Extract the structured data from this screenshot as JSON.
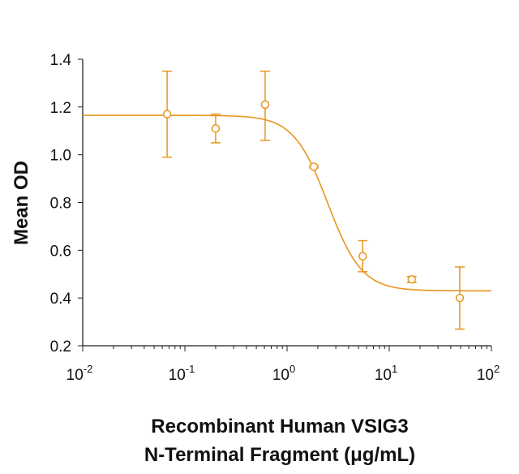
{
  "chart_data": {
    "type": "scatter",
    "xlabel": [
      "Recombinant Human VSIG3",
      "N-Terminal Fragment (μg/mL)"
    ],
    "ylabel": "Mean OD",
    "x_scale": "log",
    "xlim": [
      0.01,
      100
    ],
    "ylim": [
      0.2,
      1.4
    ],
    "x_tick_labels": [
      {
        "base": "10",
        "exp": "-2"
      },
      {
        "base": "10",
        "exp": "-1"
      },
      {
        "base": "10",
        "exp": "0"
      },
      {
        "base": "10",
        "exp": "1"
      },
      {
        "base": "10",
        "exp": "2"
      }
    ],
    "y_tick_labels": [
      "0.2",
      "0.4",
      "0.6",
      "0.8",
      "1.0",
      "1.2",
      "1.4"
    ],
    "grid": false,
    "color": "#E8961E",
    "points": [
      {
        "x": 0.067,
        "y": 1.17,
        "err_hi": 1.35,
        "err_lo": 0.99
      },
      {
        "x": 0.2,
        "y": 1.11,
        "err_hi": 1.17,
        "err_lo": 1.05
      },
      {
        "x": 0.61,
        "y": 1.21,
        "err_hi": 1.35,
        "err_lo": 1.06
      },
      {
        "x": 1.83,
        "y": 0.95,
        "err_hi": 0.955,
        "err_lo": 0.945
      },
      {
        "x": 5.5,
        "y": 0.575,
        "err_hi": 0.64,
        "err_lo": 0.51
      },
      {
        "x": 16.6,
        "y": 0.478,
        "err_hi": 0.49,
        "err_lo": 0.465
      },
      {
        "x": 49,
        "y": 0.4,
        "err_hi": 0.53,
        "err_lo": 0.27
      }
    ],
    "fit": {
      "model": "4PL",
      "top": 1.165,
      "bottom": 0.43,
      "ec50": 2.5,
      "hill": 2.6
    }
  }
}
